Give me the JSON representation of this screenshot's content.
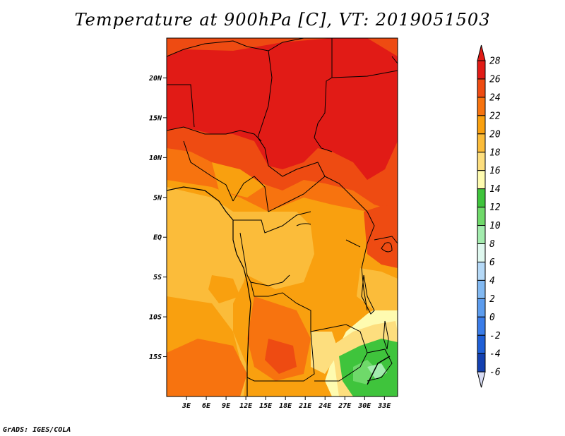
{
  "title": "Temperature at 900hPa [C], VT: 2019051503",
  "credit": "GrADS: IGES/COLA",
  "chart_data": {
    "type": "heatmap",
    "title": "Temperature at 900hPa [C], VT: 2019051503",
    "variable": "Temperature at 900hPa",
    "units": "C",
    "valid_time": "2019051503",
    "lon_range": [
      0,
      35
    ],
    "lat_range": [
      -20,
      25
    ],
    "lon_ticks": [
      3,
      6,
      9,
      12,
      15,
      18,
      21,
      24,
      27,
      30,
      33
    ],
    "lon_tick_labels": [
      "3E",
      "6E",
      "9E",
      "12E",
      "15E",
      "18E",
      "21E",
      "24E",
      "27E",
      "30E",
      "33E"
    ],
    "lat_ticks": [
      20,
      15,
      10,
      5,
      0,
      -5,
      -10,
      -15
    ],
    "lat_tick_labels": [
      "20N",
      "15N",
      "10N",
      "5N",
      "EQ",
      "5S",
      "10S",
      "15S"
    ],
    "colorbar_levels": [
      28,
      26,
      24,
      22,
      20,
      18,
      16,
      14,
      12,
      10,
      8,
      6,
      4,
      2,
      0,
      -2,
      -4,
      -6
    ],
    "colorbar_labels": [
      "28",
      "26",
      "24",
      "22",
      "20",
      "18",
      "16",
      "14",
      "12",
      "10",
      "8",
      "6",
      "4",
      "2",
      "0",
      "-2",
      "-4",
      "-6"
    ],
    "colorbar_colors": [
      "#e11b16",
      "#ee4b12",
      "#f7730f",
      "#f9a00f",
      "#fbbc3a",
      "#fdde7e",
      "#fefbb0",
      "#3fc43c",
      "#6fd96a",
      "#a3ecae",
      "#dff8ef",
      "#b5d9f7",
      "#82b9f2",
      "#5c9cee",
      "#3a7ce8",
      "#1f5fd6",
      "#1340b0",
      "#0a1e7c"
    ],
    "colorbar_end_colors": {
      "top": "#e11b16",
      "bottom": "#d8dcf4"
    }
  }
}
